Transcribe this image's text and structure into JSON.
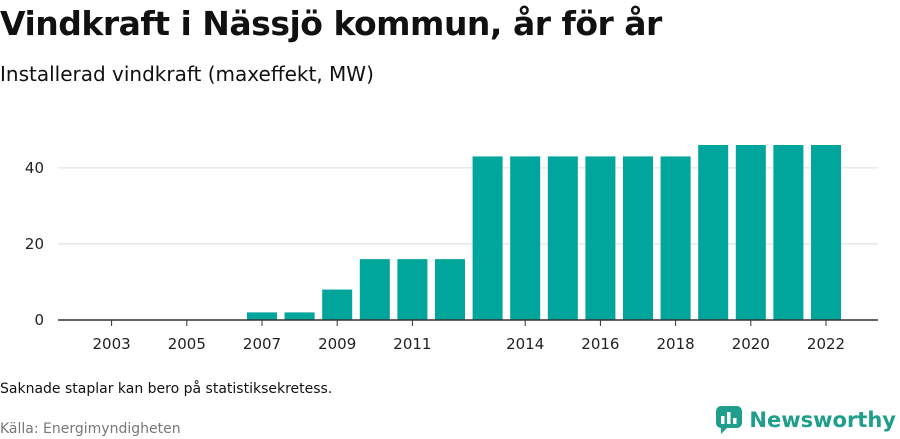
{
  "title": "Vindkraft i Nässjö kommun, år för år",
  "subtitle": "Installerad vindkraft (maxeffekt, MW)",
  "note": "Saknade staplar kan bero på statistiksekretess.",
  "source": "Källa: Energimyndigheten",
  "brand": {
    "name": "Newsworthy",
    "icon": "newsworthy-logo-icon"
  },
  "colors": {
    "bar": "#00a59b",
    "grid": "#dddddd",
    "axis": "#333333",
    "brand": "#1f9e8b"
  },
  "chart_data": {
    "type": "bar",
    "categories": [
      "2002",
      "2003",
      "2004",
      "2005",
      "2006",
      "2007",
      "2008",
      "2009",
      "2010",
      "2011",
      "2012",
      "2013",
      "2014",
      "2015",
      "2016",
      "2017",
      "2018",
      "2019",
      "2020",
      "2021",
      "2022"
    ],
    "x_tick_labels": [
      "2003",
      "2005",
      "2007",
      "2009",
      "2011",
      "2014",
      "2016",
      "2018",
      "2020",
      "2022"
    ],
    "values": [
      null,
      null,
      null,
      null,
      null,
      2,
      2,
      8,
      16,
      16,
      16,
      43,
      43,
      43,
      43,
      43,
      43,
      46,
      46,
      46,
      46
    ],
    "y_ticks": [
      0,
      20,
      40
    ],
    "ylim": [
      0,
      48
    ],
    "grid": true
  }
}
